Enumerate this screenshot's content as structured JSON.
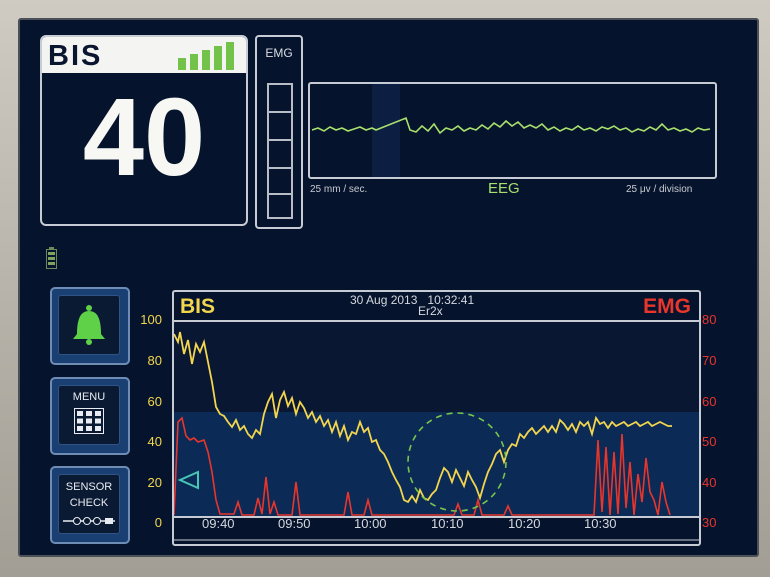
{
  "bis_panel": {
    "title": "BIS",
    "value": "40",
    "signal_quality_bars": 5
  },
  "emg_bar": {
    "label": "EMG"
  },
  "eeg_panel": {
    "scale_left": "25 mm / sec.",
    "label": "EEG",
    "scale_right": "25 μv / division"
  },
  "buttons": {
    "alarm_icon": "bell-icon",
    "menu_label": "MENU",
    "menu_icon": "keypad-icon",
    "sensor_label_line1": "SENSOR",
    "sensor_label_line2": "CHECK",
    "sensor_icon": "sensor-strip-icon"
  },
  "trend": {
    "bis_label": "BIS",
    "date": "30 Aug 2013",
    "time": "10:32:41",
    "mode": "Er2x",
    "emg_label": "EMG",
    "left_axis_ticks": [
      "100",
      "80",
      "60",
      "40",
      "20",
      "0"
    ],
    "right_axis_ticks": [
      "80",
      "70",
      "60",
      "50",
      "40",
      "30"
    ],
    "time_ticks": [
      "09:40",
      "09:50",
      "10:00",
      "10:10",
      "10:20",
      "10:30"
    ]
  },
  "colors": {
    "screen_bg": "#06132d",
    "bis_trend": "#f2d64e",
    "emg_trend": "#e8362c",
    "eeg_wave": "#a8e06c",
    "signal_bars": "#73c24a",
    "alarm_bell": "#5fd148",
    "highlight_circle": "#76c64c",
    "marker": "#46c6b4"
  }
}
